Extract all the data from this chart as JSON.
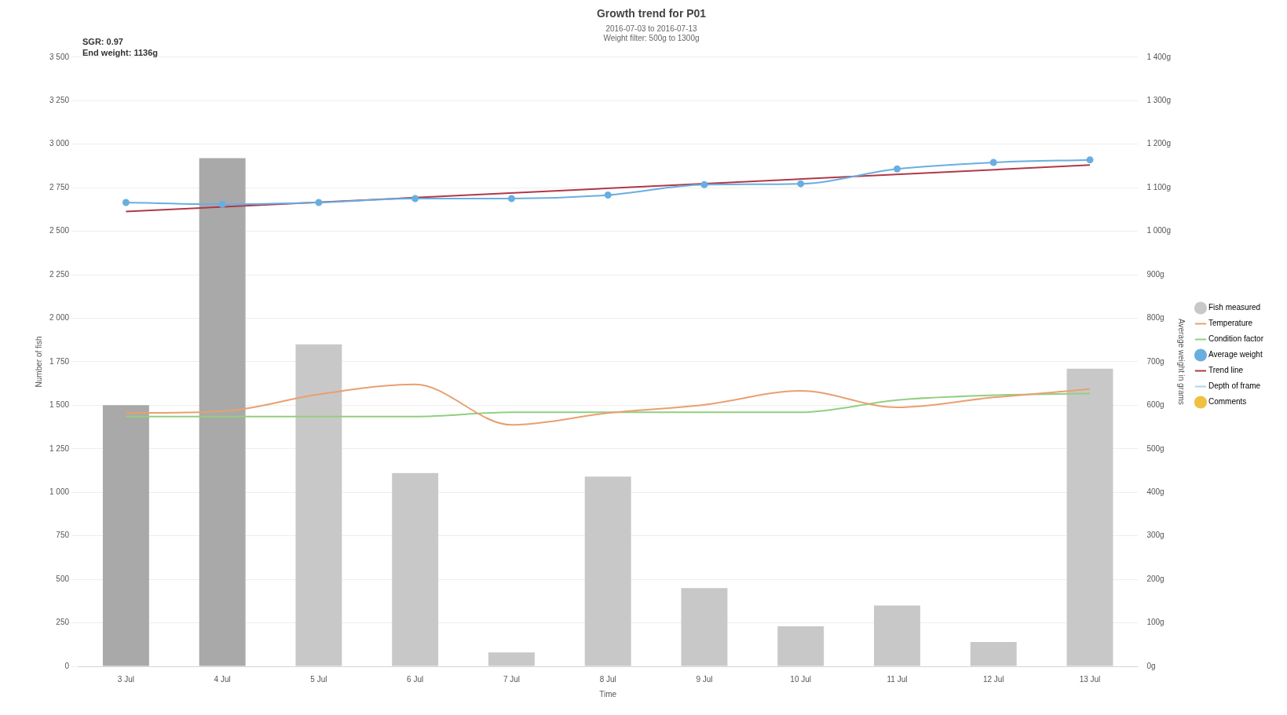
{
  "chart_data": {
    "type": "bar",
    "title": "Growth trend for P01",
    "subtitle": "2016-07-03 to 2016-07-13\nWeight filter: 500g to 1300g",
    "annotations": [
      "SGR: 0.97",
      "End weight: 1136g"
    ],
    "xlabel": "Time",
    "ylabel": "Number of fish",
    "y2label": "Average weight in grams",
    "categories": [
      "3 Jul",
      "4 Jul",
      "5 Jul",
      "6 Jul",
      "7 Jul",
      "8 Jul",
      "9 Jul",
      "10 Jul",
      "11 Jul",
      "12 Jul",
      "13 Jul"
    ],
    "series": [
      {
        "name": "Fish measured",
        "color": "#c8c8c8",
        "colors": [
          "#a9a9a9",
          "#a9a9a9",
          "#c8c8c8",
          "#c8c8c8",
          "#c8c8c8",
          "#c8c8c8",
          "#c8c8c8",
          "#c8c8c8",
          "#c8c8c8",
          "#c8c8c8",
          "#c8c8c8"
        ],
        "values": [
          1500,
          2920,
          1850,
          1110,
          80,
          1090,
          450,
          230,
          350,
          140,
          1710
        ]
      },
      {
        "name": "Temperature",
        "type": "line",
        "axis": "y2",
        "color": "#e8a070",
        "marker": "none",
        "values": [
          582,
          586,
          625,
          648,
          555,
          582,
          601,
          633,
          595,
          618,
          637
        ]
      },
      {
        "name": "Condition factor",
        "type": "line",
        "axis": "y2",
        "color": "#90d080",
        "marker": "none",
        "values": [
          574,
          574,
          574,
          574,
          584,
          584,
          584,
          584,
          612,
          623,
          627
        ]
      },
      {
        "name": "Average weight",
        "type": "line",
        "axis": "y2",
        "color": "#6aaee0",
        "marker": "circle",
        "values": [
          1066,
          1062,
          1066,
          1075,
          1075,
          1083,
          1107,
          1109,
          1143,
          1158,
          1164
        ]
      },
      {
        "name": "Trend line",
        "type": "line",
        "axis": "y2",
        "color": "#b03848",
        "marker": "none",
        "values": [
          1045,
          null,
          null,
          null,
          null,
          null,
          null,
          null,
          null,
          null,
          1152
        ]
      },
      {
        "name": "Depth of frame",
        "type": "line",
        "axis": "y2",
        "color": "#a8d4f0",
        "marker": "none",
        "values": [
          null,
          null,
          null,
          null,
          null,
          null,
          null,
          null,
          null,
          null,
          null
        ]
      },
      {
        "name": "Comments",
        "type": "scatter",
        "color": "#f0c040",
        "marker": "circle",
        "values": [
          null,
          null,
          null,
          null,
          null,
          null,
          null,
          null,
          null,
          null,
          null
        ]
      }
    ],
    "ylim": [
      0,
      3500
    ],
    "yticks": [
      {
        "value": 0,
        "label": "0"
      },
      {
        "value": 250,
        "label": "250"
      },
      {
        "value": 500,
        "label": "500"
      },
      {
        "value": 750,
        "label": "750"
      },
      {
        "value": 1000,
        "label": "1 000"
      },
      {
        "value": 1250,
        "label": "1 250"
      },
      {
        "value": 1500,
        "label": "1 500"
      },
      {
        "value": 1750,
        "label": "1 750"
      },
      {
        "value": 2000,
        "label": "2 000"
      },
      {
        "value": 2250,
        "label": "2 250"
      },
      {
        "value": 2500,
        "label": "2 500"
      },
      {
        "value": 2750,
        "label": "2 750"
      },
      {
        "value": 3000,
        "label": "3 000"
      },
      {
        "value": 3250,
        "label": "3 250"
      },
      {
        "value": 3500,
        "label": "3 500"
      }
    ],
    "y2lim": [
      0,
      1400
    ],
    "y2ticks": [
      {
        "value": 0,
        "label": "0g"
      },
      {
        "value": 100,
        "label": "100g"
      },
      {
        "value": 200,
        "label": "200g"
      },
      {
        "value": 300,
        "label": "300g"
      },
      {
        "value": 400,
        "label": "400g"
      },
      {
        "value": 500,
        "label": "500g"
      },
      {
        "value": 600,
        "label": "600g"
      },
      {
        "value": 700,
        "label": "700g"
      },
      {
        "value": 800,
        "label": "800g"
      },
      {
        "value": 900,
        "label": "900g"
      },
      {
        "value": 1000,
        "label": "1 000g"
      },
      {
        "value": 1100,
        "label": "1 100g"
      },
      {
        "value": 1200,
        "label": "1 200g"
      },
      {
        "value": 1300,
        "label": "1 300g"
      },
      {
        "value": 1400,
        "label": "1 400g"
      }
    ],
    "grid": "y",
    "legend": "right"
  }
}
